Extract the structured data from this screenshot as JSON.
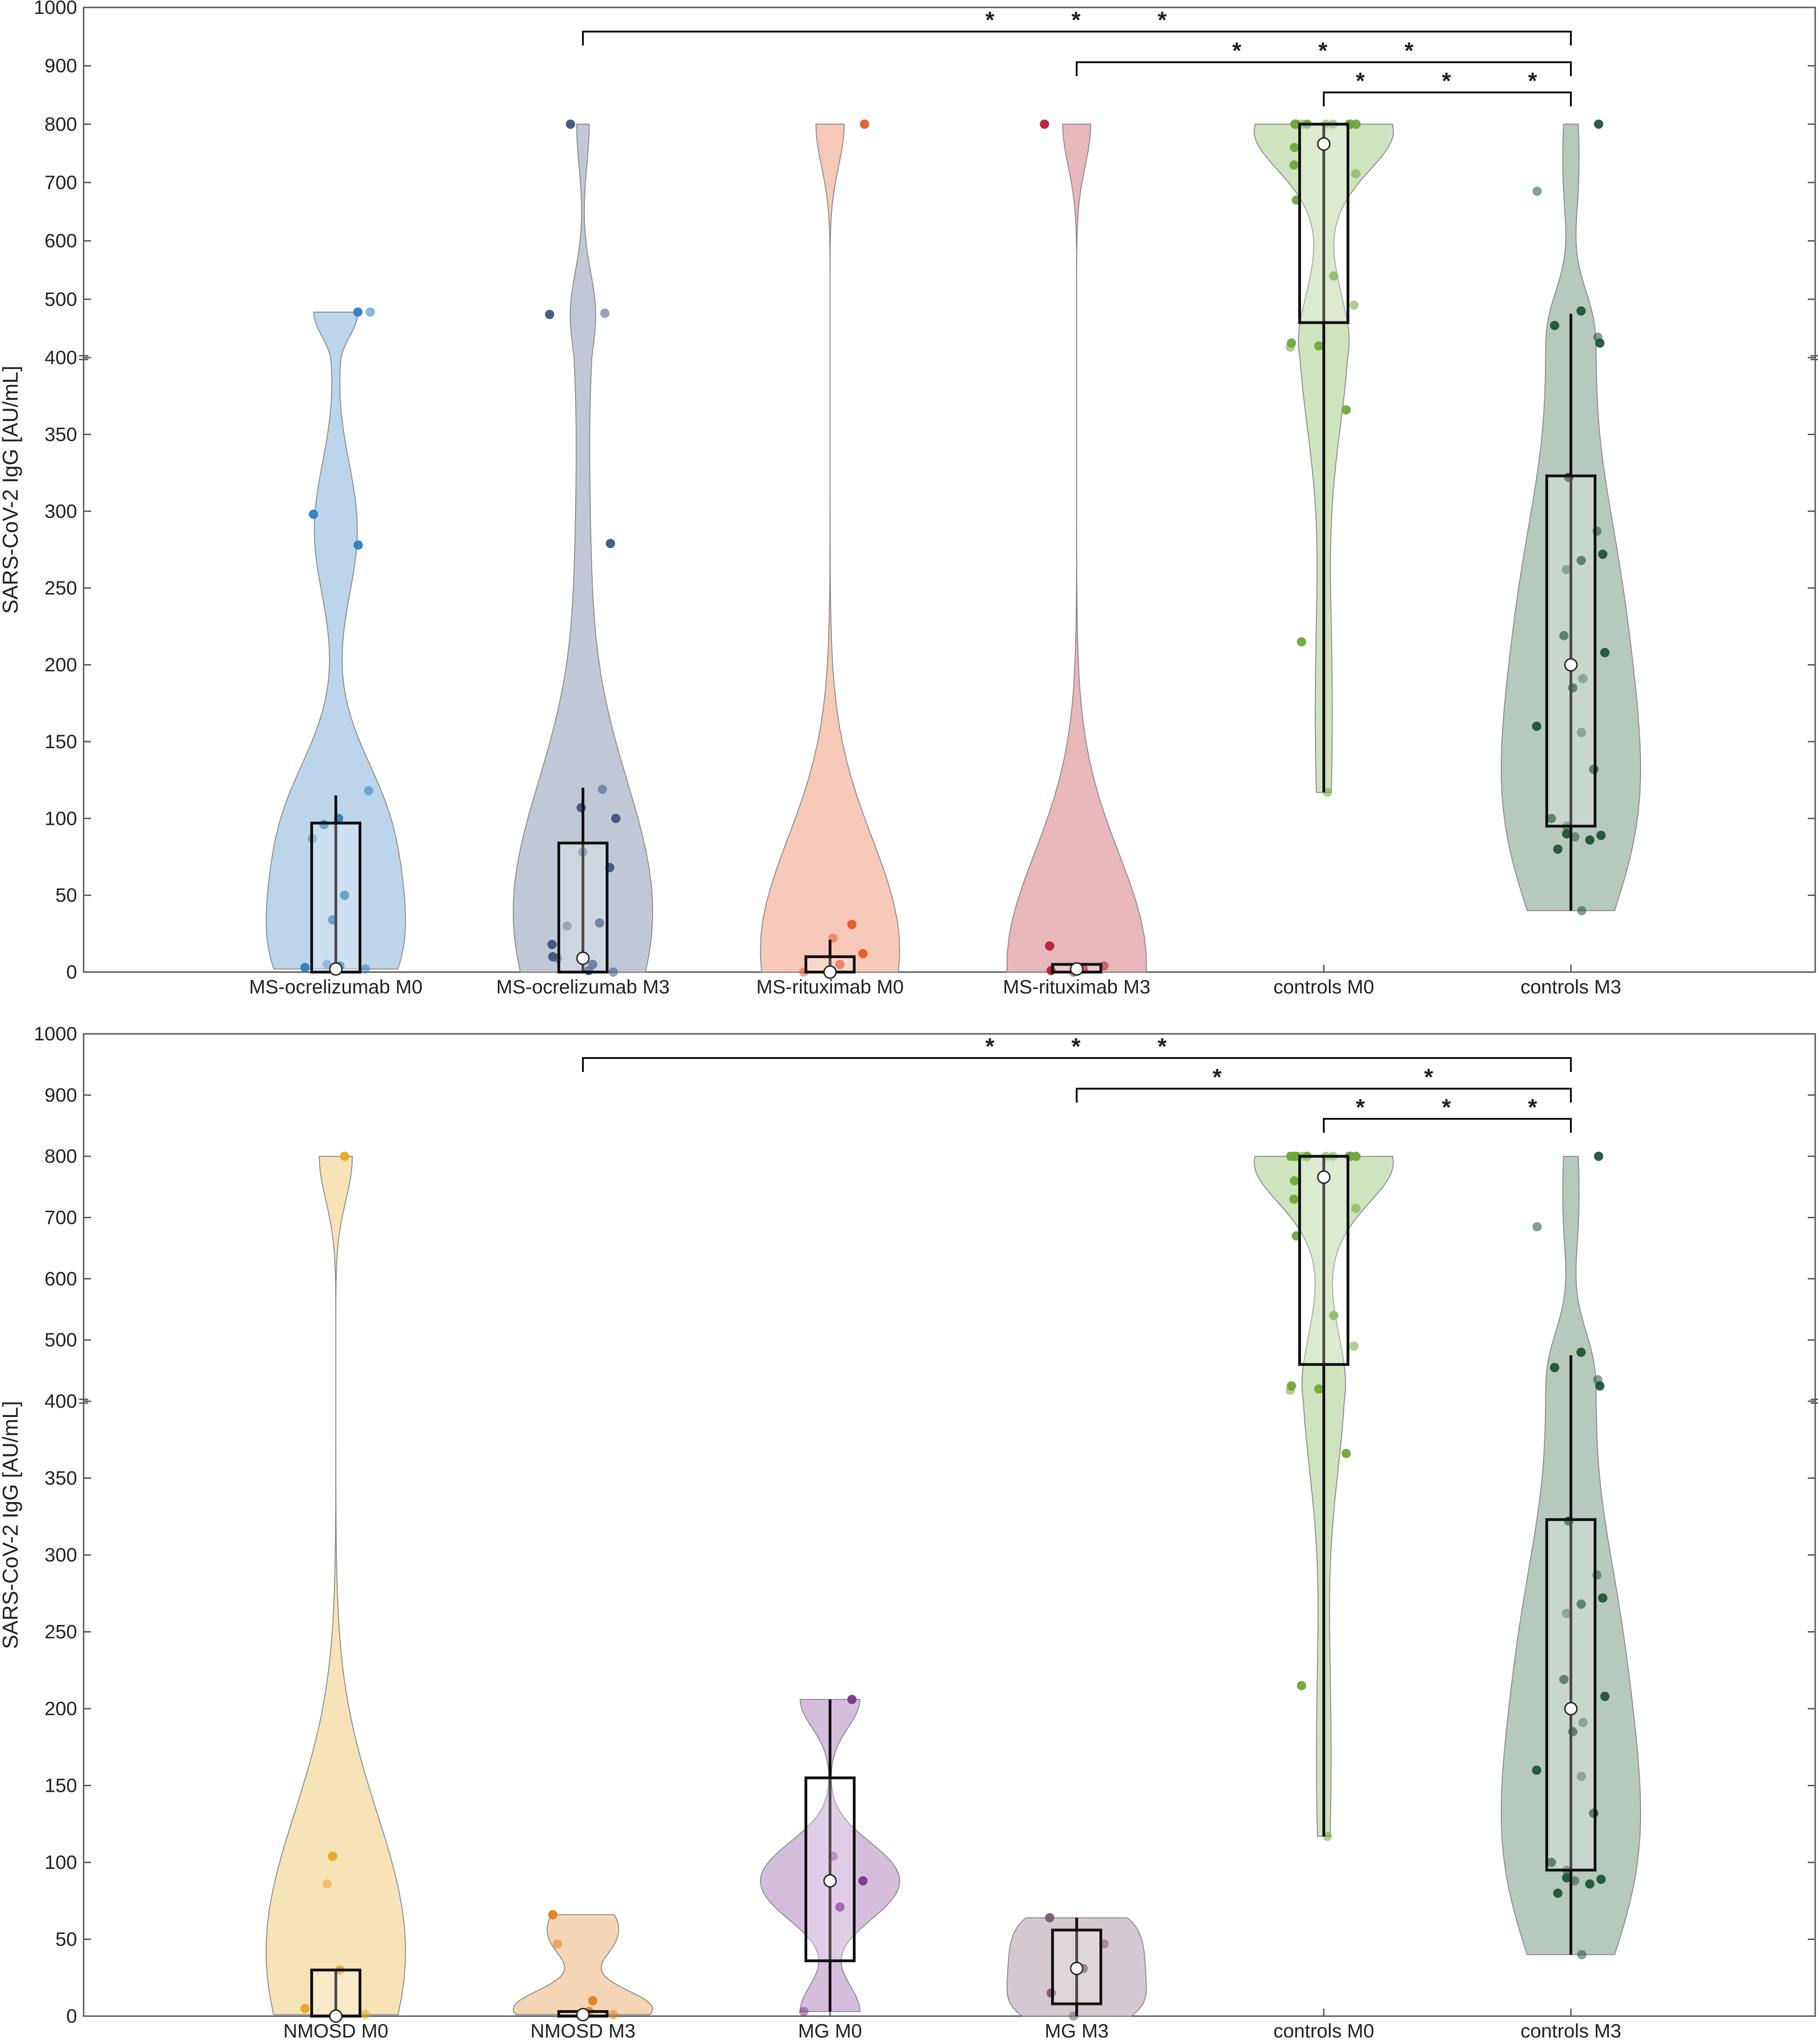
{
  "chart_data": [
    {
      "type": "violin",
      "ylabel": "SARS-CoV-2 IgG [AU/mL]",
      "yaxis": {
        "broken_at": 400,
        "lower_segment": [
          0,
          400
        ],
        "upper_segment": [
          400,
          1000
        ],
        "lower_ticks": [
          0,
          50,
          100,
          150,
          200,
          250,
          300,
          350
        ],
        "upper_ticks": [
          400,
          500,
          600,
          700,
          800,
          900,
          1000
        ]
      },
      "categories": [
        "MS-ocrelizumab M0",
        "MS-ocrelizumab M3",
        "MS-rituximab M0",
        "MS-rituximab M3",
        "controls M0",
        "controls M3"
      ],
      "series": [
        {
          "group": "MS-ocrelizumab M0",
          "color": "#2e7ebf",
          "points": [
            2,
            3,
            4,
            5,
            34,
            50,
            87,
            96,
            100,
            118,
            278,
            298,
            478,
            478
          ],
          "median": 2,
          "q1": 0,
          "q3": 97,
          "whisker_low": 0,
          "whisker_high": 115
        },
        {
          "group": "MS-ocrelizumab M3",
          "color": "#3b557f",
          "points": [
            0,
            1,
            5,
            9,
            10,
            18,
            30,
            32,
            68,
            78,
            100,
            107,
            119,
            279,
            474,
            476,
            800
          ],
          "median": 9,
          "q1": 0,
          "q3": 84,
          "whisker_low": 0,
          "whisker_high": 120
        },
        {
          "group": "MS-rituximab M0",
          "color": "#e25a28",
          "points": [
            0,
            5,
            12,
            22,
            31,
            800
          ],
          "median": 0,
          "q1": 0,
          "q3": 10,
          "whisker_low": 0,
          "whisker_high": 21
        },
        {
          "group": "MS-rituximab M3",
          "color": "#b4202e",
          "points": [
            0,
            1,
            2,
            4,
            17,
            800
          ],
          "median": 2,
          "q1": 0,
          "q3": 5,
          "whisker_low": 0,
          "whisker_high": 5
        },
        {
          "group": "controls M0",
          "color": "#6ea83a",
          "points": [
            117,
            215,
            366,
            418,
            420,
            425,
            490,
            540,
            670,
            715,
            730,
            760,
            800,
            800,
            800,
            800,
            800,
            800,
            800,
            800,
            800,
            800
          ],
          "median": 766,
          "q1": 460,
          "q3": 800,
          "whisker_low": 117,
          "whisker_high": 800
        },
        {
          "group": "controls M3",
          "color": "#1e5536",
          "points": [
            40,
            80,
            86,
            88,
            89,
            90,
            95,
            100,
            132,
            156,
            160,
            185,
            191,
            208,
            219,
            262,
            268,
            272,
            287,
            322,
            425,
            435,
            455,
            480,
            685,
            800
          ],
          "median": 200,
          "q1": 95,
          "q3": 323,
          "whisker_low": 40,
          "whisker_high": 475
        }
      ],
      "significance": [
        {
          "from": "MS-ocrelizumab M3",
          "to": "controls M3",
          "label": "* * *"
        },
        {
          "from": "MS-rituximab M3",
          "to": "controls M3",
          "label": "* * *"
        },
        {
          "from": "controls M0",
          "to": "controls M3",
          "label": "* * *"
        }
      ]
    },
    {
      "type": "violin",
      "ylabel": "SARS-CoV-2 IgG [AU/mL]",
      "yaxis": {
        "broken_at": 400,
        "lower_segment": [
          0,
          400
        ],
        "upper_segment": [
          400,
          1000
        ],
        "lower_ticks": [
          0,
          50,
          100,
          150,
          200,
          250,
          300,
          350
        ],
        "upper_ticks": [
          400,
          500,
          600,
          700,
          800,
          900,
          1000
        ]
      },
      "categories": [
        "NMOSD M0",
        "NMOSD M3",
        "MG M0",
        "MG M3",
        "controls M0",
        "controls M3"
      ],
      "series": [
        {
          "group": "NMOSD M0",
          "color": "#e8a822",
          "points": [
            1,
            5,
            30,
            86,
            104,
            800
          ],
          "median": 0,
          "q1": 0,
          "q3": 30,
          "whisker_low": 0,
          "whisker_high": 30
        },
        {
          "group": "NMOSD M3",
          "color": "#e07f1c",
          "points": [
            1,
            3,
            10,
            47,
            66
          ],
          "median": 1,
          "q1": 0,
          "q3": 3,
          "whisker_low": 0,
          "whisker_high": 3
        },
        {
          "group": "MG M0",
          "color": "#7e3294",
          "points": [
            3,
            71,
            88,
            104,
            206
          ],
          "median": 88,
          "q1": 36,
          "q3": 155,
          "whisker_low": 3,
          "whisker_high": 206
        },
        {
          "group": "MG M3",
          "color": "#7a5a72",
          "points": [
            0,
            15,
            31,
            47,
            64
          ],
          "median": 31,
          "q1": 8,
          "q3": 56,
          "whisker_low": 0,
          "whisker_high": 64
        },
        {
          "group": "controls M0",
          "color": "#6ea83a",
          "points": [
            117,
            215,
            366,
            418,
            420,
            425,
            490,
            540,
            670,
            715,
            730,
            760,
            800,
            800,
            800,
            800,
            800,
            800,
            800,
            800,
            800,
            800,
            800,
            800
          ],
          "median": 766,
          "q1": 460,
          "q3": 800,
          "whisker_low": 117,
          "whisker_high": 800
        },
        {
          "group": "controls M3",
          "color": "#1e5536",
          "points": [
            40,
            80,
            86,
            88,
            89,
            90,
            95,
            100,
            132,
            156,
            160,
            185,
            191,
            208,
            219,
            262,
            268,
            272,
            287,
            322,
            425,
            435,
            455,
            480,
            685,
            800
          ],
          "median": 200,
          "q1": 95,
          "q3": 323,
          "whisker_low": 40,
          "whisker_high": 475
        }
      ],
      "significance": [
        {
          "from": "NMOSD M3",
          "to": "controls M3",
          "label": "* * *"
        },
        {
          "from": "MG M3",
          "to": "controls M3",
          "label": "* *"
        },
        {
          "from": "controls M0",
          "to": "controls M3",
          "label": "* * *"
        }
      ]
    }
  ]
}
